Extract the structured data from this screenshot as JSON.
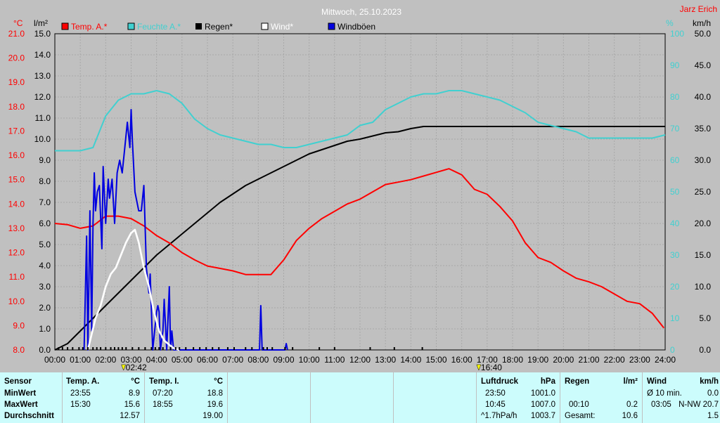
{
  "header": {
    "title": "Mittwoch, 25.10.2023",
    "author": "Jarz Erich"
  },
  "chart_data": {
    "type": "line",
    "title": "Mittwoch, 25.10.2023",
    "x_tick_labels": [
      "00:00",
      "01:00",
      "02:00",
      "03:00",
      "04:00",
      "05:00",
      "06:00",
      "07:00",
      "08:00",
      "09:00",
      "10:00",
      "11:00",
      "12:00",
      "13:00",
      "14:00",
      "15:00",
      "16:00",
      "17:00",
      "18:00",
      "19:00",
      "20:00",
      "21:00",
      "22:00",
      "23:00",
      "24:00"
    ],
    "x_markers": [
      {
        "label": "02:42",
        "hour": 2.7
      },
      {
        "label": "16:40",
        "hour": 16.67
      }
    ],
    "axes": {
      "temp": {
        "unit": "°C",
        "min": 8.0,
        "max": 21.0,
        "ticks": [
          "21.0",
          "20.0",
          "19.0",
          "18.0",
          "17.0",
          "16.0",
          "15.0",
          "14.0",
          "13.0",
          "12.0",
          "11.0",
          "10.0",
          "9.0",
          "8.0"
        ]
      },
      "rain": {
        "unit": "l/m²",
        "min": 0.0,
        "max": 15.0,
        "ticks": [
          "15.0",
          "14.0",
          "13.0",
          "12.0",
          "11.0",
          "10.0",
          "9.0",
          "8.0",
          "7.0",
          "6.0",
          "5.0",
          "4.0",
          "3.0",
          "2.0",
          "1.0",
          "0.0"
        ]
      },
      "humidity": {
        "unit": "%",
        "min": 0,
        "max": 100,
        "ticks": [
          "100",
          "90",
          "80",
          "70",
          "60",
          "50",
          "40",
          "30",
          "20",
          "10",
          "0"
        ]
      },
      "wind": {
        "unit": "km/h",
        "min": 0.0,
        "max": 50.0,
        "ticks": [
          "50.0",
          "45.0",
          "40.0",
          "35.0",
          "30.0",
          "25.0",
          "20.0",
          "15.0",
          "10.0",
          "5.0",
          "0.0"
        ]
      }
    },
    "grid": true,
    "legend_position": "top",
    "series": [
      {
        "name": "Temp. A.*",
        "color": "#ff0000",
        "axis": "temp",
        "x": [
          0,
          0.5,
          1,
          1.5,
          2,
          2.5,
          3,
          3.5,
          4,
          4.5,
          5,
          5.5,
          6,
          6.5,
          7,
          7.5,
          8,
          8.5,
          9,
          9.5,
          10,
          10.5,
          11,
          11.5,
          12,
          12.5,
          13,
          13.5,
          14,
          14.5,
          15,
          15.5,
          16,
          16.5,
          17,
          17.5,
          18,
          18.5,
          19,
          19.5,
          20,
          20.5,
          21,
          21.5,
          22,
          22.5,
          23,
          23.5,
          23.95
        ],
        "values": [
          13.2,
          13.15,
          13.0,
          13.1,
          13.5,
          13.5,
          13.4,
          13.1,
          12.7,
          12.4,
          12.0,
          11.7,
          11.45,
          11.35,
          11.25,
          11.1,
          11.1,
          11.1,
          11.7,
          12.5,
          13.0,
          13.4,
          13.7,
          14.0,
          14.2,
          14.5,
          14.8,
          14.9,
          15.0,
          15.15,
          15.3,
          15.45,
          15.2,
          14.6,
          14.4,
          13.9,
          13.3,
          12.4,
          11.8,
          11.6,
          11.25,
          10.95,
          10.8,
          10.6,
          10.3,
          10.0,
          9.9,
          9.5,
          8.9
        ]
      },
      {
        "name": "Feuchte A.*",
        "color": "#40d0d0",
        "axis": "humidity",
        "x": [
          0,
          0.5,
          1,
          1.5,
          2,
          2.5,
          3,
          3.5,
          4,
          4.5,
          5,
          5.5,
          6,
          6.5,
          7,
          7.5,
          8,
          8.5,
          9,
          9.5,
          10,
          10.5,
          11,
          11.5,
          12,
          12.5,
          13,
          13.5,
          14,
          14.5,
          15,
          15.5,
          16,
          16.5,
          17,
          17.5,
          18,
          18.5,
          19,
          19.5,
          20,
          20.5,
          21,
          21.5,
          22,
          22.5,
          23,
          23.5,
          24
        ],
        "values": [
          63,
          63,
          63,
          64,
          74,
          79,
          81,
          81,
          82,
          81,
          78,
          73,
          70,
          68,
          67,
          66,
          65,
          65,
          64,
          64,
          65,
          66,
          67,
          68,
          71,
          72,
          76,
          78,
          80,
          81,
          81,
          82,
          82,
          81,
          80,
          79,
          77,
          75,
          72,
          71,
          70,
          69,
          67,
          67,
          67,
          67,
          67,
          67,
          68
        ]
      },
      {
        "name": "Regen*",
        "color": "#000000",
        "axis": "rain",
        "x": [
          0,
          0.5,
          1,
          1.5,
          2,
          2.5,
          3,
          3.5,
          4,
          4.5,
          5,
          5.5,
          6,
          6.5,
          7,
          7.5,
          8,
          8.5,
          9,
          9.5,
          10,
          10.5,
          11,
          11.5,
          12,
          12.5,
          13,
          13.5,
          14,
          14.5,
          15,
          15.5,
          16,
          16.5,
          17,
          17.5,
          18,
          18.5,
          19,
          19.5,
          20,
          20.5,
          21,
          21.5,
          22,
          22.5,
          23,
          23.5,
          24
        ],
        "values": [
          0,
          0.3,
          0.9,
          1.5,
          2.1,
          2.7,
          3.3,
          3.9,
          4.5,
          5.0,
          5.5,
          6.0,
          6.5,
          7.0,
          7.4,
          7.8,
          8.1,
          8.4,
          8.7,
          9.0,
          9.3,
          9.5,
          9.7,
          9.9,
          10.0,
          10.15,
          10.3,
          10.35,
          10.5,
          10.6,
          10.6,
          10.6,
          10.6,
          10.6,
          10.6,
          10.6,
          10.6,
          10.6,
          10.6,
          10.6,
          10.6,
          10.6,
          10.6,
          10.6,
          10.6,
          10.6,
          10.6,
          10.6,
          10.6
        ]
      },
      {
        "name": "Wind*",
        "color": "#ffffff",
        "axis": "wind",
        "x": [
          1.3,
          1.45,
          1.6,
          1.8,
          2.0,
          2.2,
          2.4,
          2.6,
          2.8,
          3.0,
          3.15,
          3.3,
          3.5,
          3.7,
          3.9,
          4.1,
          4.3,
          4.5,
          4.7,
          4.9
        ],
        "values": [
          0,
          2.5,
          5,
          7,
          10,
          12,
          13,
          15,
          17,
          18.5,
          19,
          17,
          13,
          10,
          6,
          3,
          1.5,
          0.8,
          0.2,
          0
        ]
      },
      {
        "name": "Windböen",
        "color": "#0000e0",
        "axis": "wind",
        "x": [
          1.15,
          1.25,
          1.3,
          1.38,
          1.45,
          1.5,
          1.55,
          1.6,
          1.67,
          1.75,
          1.85,
          1.9,
          2.0,
          2.1,
          2.15,
          2.25,
          2.35,
          2.45,
          2.55,
          2.65,
          2.75,
          2.85,
          2.95,
          3.0,
          3.05,
          3.15,
          3.3,
          3.4,
          3.5,
          3.6,
          3.7,
          3.75,
          3.85,
          4.0,
          4.05,
          4.1,
          4.15,
          4.25,
          4.3,
          4.4,
          4.5,
          4.55,
          4.6,
          4.67,
          4.7,
          8.05,
          8.1,
          8.15,
          8.2,
          9.05,
          9.1,
          9.15
        ],
        "values": [
          0,
          18,
          0,
          22,
          3,
          20,
          28,
          22,
          25,
          26,
          16,
          29,
          20,
          27,
          24,
          27,
          20,
          28,
          30,
          28,
          32,
          36,
          32,
          38,
          33,
          25,
          22,
          22,
          26,
          13,
          9,
          12,
          0,
          6,
          7,
          6,
          0,
          3,
          8,
          0,
          10,
          0,
          3,
          0,
          0,
          0,
          7,
          0,
          0,
          0,
          1,
          0
        ]
      }
    ],
    "rain_event_hours": [
      0.15,
      0.3,
      0.5,
      0.7,
      0.95,
      1.1,
      1.3,
      1.5,
      1.65,
      1.8,
      2.0,
      2.2,
      2.35,
      2.5,
      2.65,
      2.8,
      3.05,
      3.3,
      3.55,
      3.8,
      3.95,
      4.1,
      4.25,
      4.55,
      4.75,
      4.9,
      5.15,
      5.45,
      5.7,
      5.95,
      6.2,
      6.45,
      6.8,
      7.05,
      7.5,
      7.75,
      8.2,
      8.35,
      8.55,
      9.05,
      9.35,
      10.4,
      11.0,
      12.4,
      13.35,
      14.45
    ]
  },
  "legend": [
    {
      "label": "Temp. A.*",
      "color": "#ff0000"
    },
    {
      "label": "Feuchte A.*",
      "color": "#40d0d0"
    },
    {
      "label": "Regen*",
      "color": "#000000"
    },
    {
      "label": "Wind*",
      "color": "#ffffff"
    },
    {
      "label": "Windböen",
      "color": "#0000e0"
    }
  ],
  "panel": {
    "sensor": {
      "header": "Sensor",
      "rows": [
        "MinWert",
        "MaxWert",
        "Durchschnitt"
      ]
    },
    "temp_a": {
      "header": "Temp. A.",
      "unit": "°C",
      "min_time": "23:55",
      "min": "8.9",
      "max_time": "15:30",
      "max": "15.6",
      "avg": "12.57"
    },
    "temp_i": {
      "header": "Temp. I.",
      "unit": "°C",
      "min_time": "07:20",
      "min": "18.8",
      "max_time": "18:55",
      "max": "19.6",
      "avg": "19.00"
    },
    "pressure": {
      "header": "Luftdruck",
      "unit": "hPa",
      "min_time": "23:50",
      "min": "1001.0",
      "max_time": "10:45",
      "max": "1007.0",
      "trend": "^1.7hPa/h",
      "trend_value": "1003.7"
    },
    "rain": {
      "header": "Regen",
      "unit": "l/m²",
      "max_time": "00:10",
      "max": "0.2",
      "total_label": "Gesamt:",
      "total": "10.6"
    },
    "wind": {
      "header": "Wind",
      "unit": "km/h",
      "avg_label": "Ø 10 min.",
      "avg": "0.0",
      "max_time": "03:05",
      "max": "N-NW 20.7",
      "value3": "1.5"
    }
  }
}
